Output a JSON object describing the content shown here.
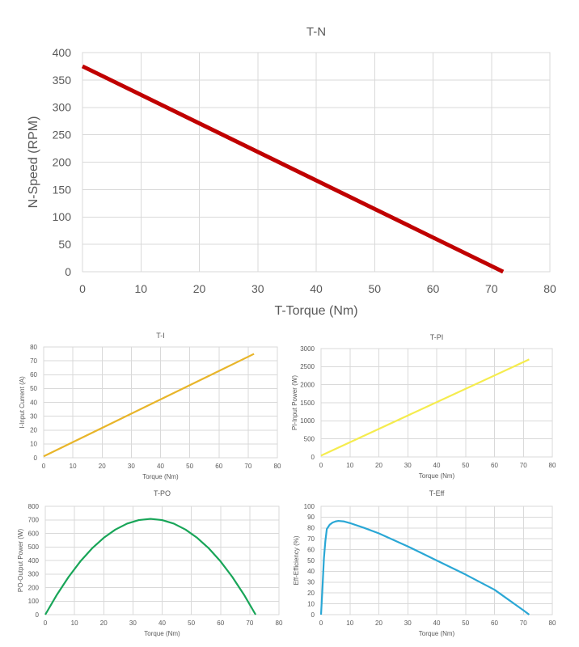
{
  "chart_data": [
    {
      "type": "line",
      "title": "T-N",
      "xlabel": "T-Torque (Nm)",
      "ylabel": "N-Speed (RPM)",
      "xlim": [
        0,
        80
      ],
      "ylim": [
        0,
        400
      ],
      "xticks": [
        "0",
        "10",
        "20",
        "30",
        "40",
        "50",
        "60",
        "70",
        "80"
      ],
      "yticks": [
        "0",
        "50",
        "100",
        "150",
        "200",
        "250",
        "300",
        "350",
        "400"
      ],
      "grid": true,
      "series": [
        {
          "color": "#c00000",
          "x": [
            0,
            72
          ],
          "y": [
            375,
            0
          ]
        }
      ]
    },
    {
      "type": "line",
      "title": "T-I",
      "xlabel": "Torque (Nm)",
      "ylabel": "I-Input Current (A)",
      "xlim": [
        0,
        80
      ],
      "ylim": [
        0,
        80
      ],
      "xticks": [
        "0",
        "10",
        "20",
        "30",
        "40",
        "50",
        "60",
        "70",
        "80"
      ],
      "yticks": [
        "0",
        "10",
        "20",
        "30",
        "40",
        "50",
        "60",
        "70",
        "80"
      ],
      "grid": true,
      "series": [
        {
          "color": "#e8b52a",
          "x": [
            0,
            72
          ],
          "y": [
            1,
            75
          ]
        }
      ]
    },
    {
      "type": "line",
      "title": "T-PI",
      "xlabel": "Torque (Nm)",
      "ylabel": "PI-Input Power (W)",
      "xlim": [
        0,
        80
      ],
      "ylim": [
        0,
        3000
      ],
      "xticks": [
        "0",
        "10",
        "20",
        "30",
        "40",
        "50",
        "60",
        "70",
        "80"
      ],
      "yticks": [
        "0",
        "500",
        "1000",
        "1500",
        "2000",
        "2500",
        "3000"
      ],
      "grid": true,
      "series": [
        {
          "color": "#f5ec4e",
          "x": [
            0,
            72
          ],
          "y": [
            36,
            2700
          ]
        }
      ]
    },
    {
      "type": "line",
      "title": "T-PO",
      "xlabel": "Torque (Nm)",
      "ylabel": "PO-Output Power (W)",
      "xlim": [
        0,
        80
      ],
      "ylim": [
        0,
        800
      ],
      "xticks": [
        "0",
        "10",
        "20",
        "30",
        "40",
        "50",
        "60",
        "70",
        "80"
      ],
      "yticks": [
        "0",
        "100",
        "200",
        "300",
        "400",
        "500",
        "600",
        "700",
        "800"
      ],
      "grid": true,
      "series": [
        {
          "color": "#18a558",
          "x": [
            0,
            4,
            8,
            12,
            16,
            20,
            24,
            28,
            32,
            36,
            40,
            44,
            48,
            52,
            56,
            60,
            64,
            68,
            72
          ],
          "y": [
            0,
            148,
            279,
            393,
            489,
            567,
            628,
            672,
            698,
            707,
            698,
            672,
            628,
            567,
            489,
            393,
            279,
            148,
            0
          ]
        }
      ]
    },
    {
      "type": "line",
      "title": "T-Eff",
      "xlabel": "Torque (Nm)",
      "ylabel": "Eff-Efficiency (%)",
      "xlim": [
        0,
        80
      ],
      "ylim": [
        0,
        100
      ],
      "xticks": [
        "0",
        "10",
        "20",
        "30",
        "40",
        "50",
        "60",
        "70",
        "80"
      ],
      "yticks": [
        "0",
        "10",
        "20",
        "30",
        "40",
        "50",
        "60",
        "70",
        "80",
        "90",
        "100"
      ],
      "grid": true,
      "series": [
        {
          "color": "#2aa7d5",
          "x": [
            0,
            0.5,
            1,
            1.5,
            2,
            3,
            4,
            5,
            6,
            8,
            10,
            15,
            20,
            30,
            40,
            50,
            60,
            70,
            72
          ],
          "y": [
            0,
            25,
            52,
            68,
            79,
            83,
            85,
            86,
            86.5,
            86,
            84.5,
            80,
            75,
            63,
            50,
            37,
            23,
            4,
            0
          ]
        }
      ]
    }
  ]
}
